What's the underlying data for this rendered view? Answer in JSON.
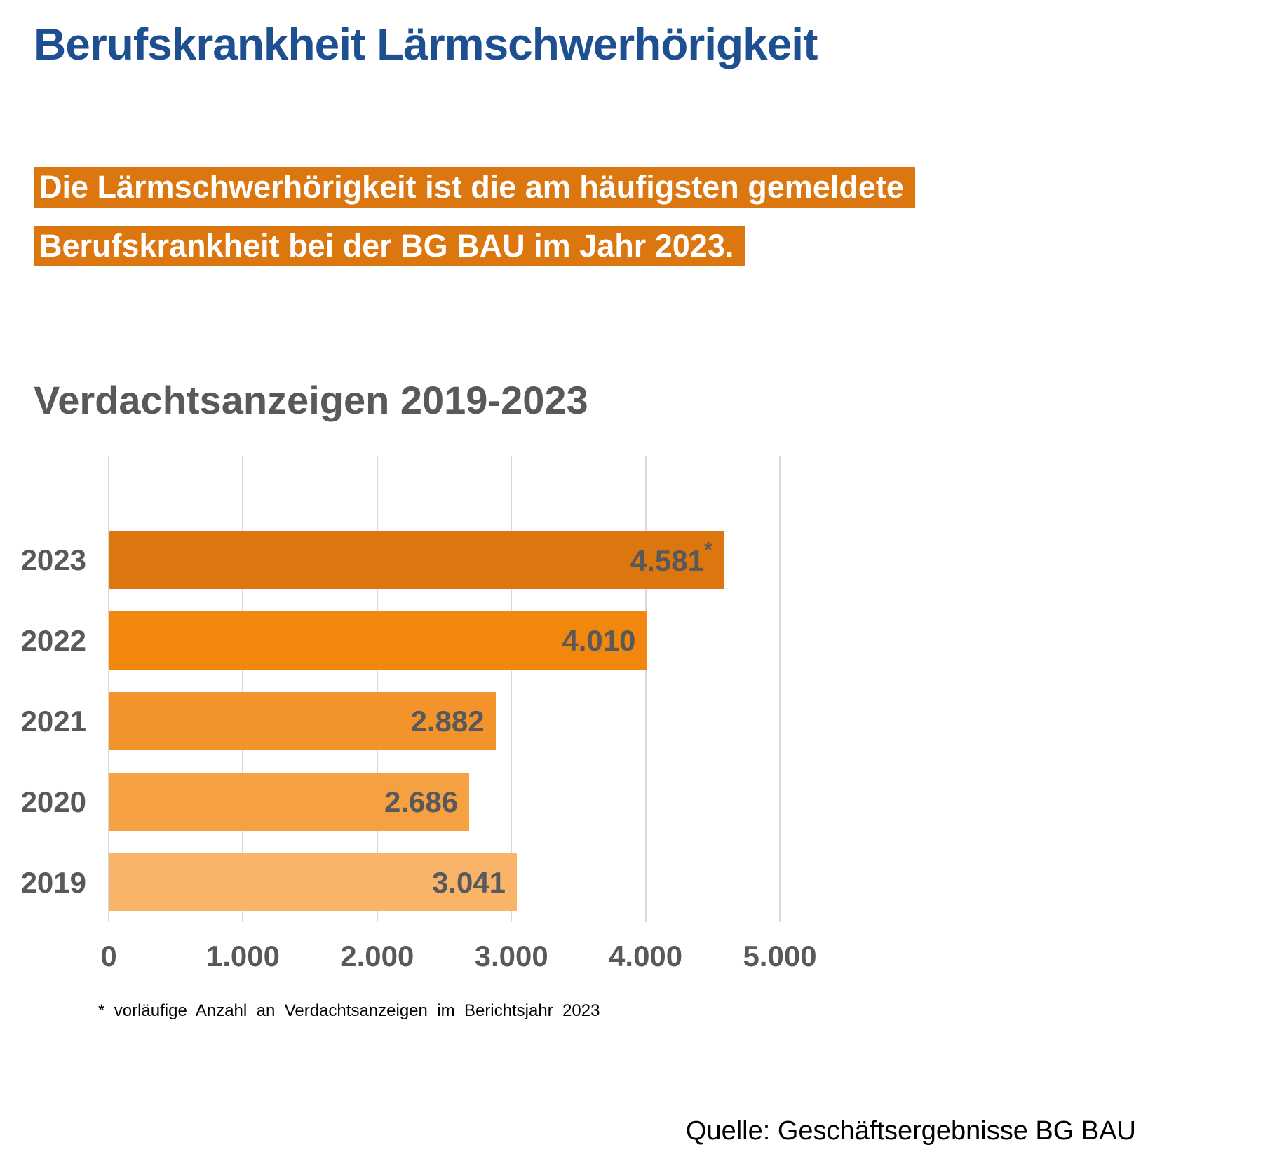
{
  "header": {
    "title": "Berufskrankheit Lärmschwerhörigkeit",
    "highlight_lines": [
      "Die Lärmschwerhörigkeit ist die am häufigsten gemeldete",
      "Berufskrankheit bei der BG BAU im Jahr 2023."
    ]
  },
  "chart_data": {
    "type": "bar",
    "orientation": "horizontal",
    "title": "Verdachtsanzeigen 2019-2023",
    "categories": [
      "2023",
      "2022",
      "2021",
      "2020",
      "2019"
    ],
    "values": [
      4581,
      4010,
      2882,
      2686,
      3041
    ],
    "value_labels": [
      "4.581",
      "4.010",
      "2.882",
      "2.686",
      "3.041"
    ],
    "value_label_superscripts": [
      "*",
      "",
      "",
      "",
      ""
    ],
    "bar_colors": [
      "#DC760F",
      "#F1870C",
      "#F3932B",
      "#F5A041",
      "#F8B468"
    ],
    "x_ticks": [
      "0",
      "1.000",
      "2.000",
      "3.000",
      "4.000",
      "5.000"
    ],
    "xlim": [
      0,
      5000
    ],
    "grid": true,
    "legend": false,
    "footnote": "* vorläufige Anzahl an Verdachtsanzeigen im Berichtsjahr 2023"
  },
  "footer": {
    "source": "Quelle: Geschäftsergebnisse BG BAU"
  },
  "colors": {
    "title_blue": "#1D4F91",
    "highlight_orange": "#DC760F",
    "highlight_text": "#FFFFFF",
    "heading_gray": "#58595B",
    "label_gray": "#58595B",
    "gridline_gray": "#D9D9D9",
    "footnote_black": "#000000"
  }
}
